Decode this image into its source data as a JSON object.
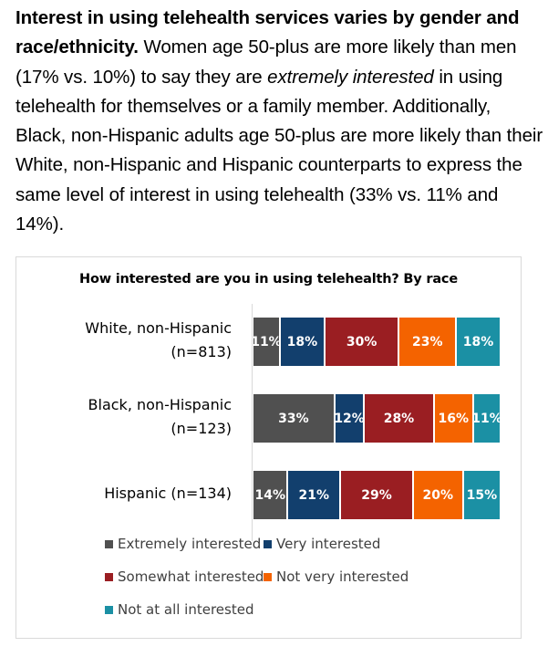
{
  "paragraph": {
    "bold_lead": "Interest in using telehealth services varies by gender and race/ethnicity.",
    "text_1": " Women age 50-plus are more likely than men (17% vs. 10%) to say they are ",
    "italic": "extremely interested",
    "text_2": " in using telehealth for themselves or a family member.  Additionally, Black, non-Hispanic adults age 50-plus are more likely than their White, non-Hispanic and Hispanic counterparts to express the same level of interest in using telehealth (33% vs. 11% and 14%)."
  },
  "chart_data": {
    "type": "bar",
    "orientation": "horizontal",
    "stacked": true,
    "title": "How interested are you in using telehealth? By race",
    "categories": [
      {
        "line1": "White, non-Hispanic",
        "line2": "(n=813)"
      },
      {
        "line1": "Black, non-Hispanic",
        "line2": "(n=123)"
      },
      {
        "line1": "Hispanic (n=134)",
        "line2": ""
      }
    ],
    "series": [
      {
        "name": "Extremely interested",
        "color": "#505050",
        "values": [
          11,
          33,
          14
        ],
        "labels": [
          "11%",
          "33%",
          "14%"
        ]
      },
      {
        "name": "Very interested",
        "color": "#123f6d",
        "values": [
          18,
          12,
          21
        ],
        "labels": [
          "18%",
          "12%",
          "21%"
        ]
      },
      {
        "name": "Somewhat interested",
        "color": "#9a1e22",
        "values": [
          30,
          28,
          29
        ],
        "labels": [
          "30%",
          "28%",
          "29%"
        ]
      },
      {
        "name": "Not very interested",
        "color": "#f46300",
        "values": [
          23,
          16,
          20
        ],
        "labels": [
          "23%",
          "16%",
          "20%"
        ]
      },
      {
        "name": "Not at all interested",
        "color": "#1b90a4",
        "values": [
          18,
          11,
          15
        ],
        "labels": [
          "18%",
          "11%",
          "15%"
        ]
      }
    ],
    "xlim": [
      0,
      100
    ],
    "legend_position": "bottom",
    "grid": false
  }
}
